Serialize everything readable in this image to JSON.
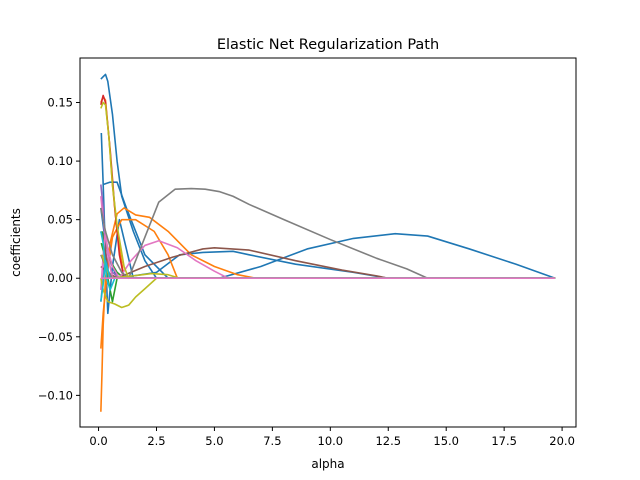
{
  "chart_data": {
    "type": "line",
    "title": "Elastic Net Regularization Path",
    "xlabel": "alpha",
    "ylabel": "coefficients",
    "xlim": [
      -0.8,
      20.6
    ],
    "ylim": [
      -0.127,
      0.188
    ],
    "xticks": [
      0.0,
      2.5,
      5.0,
      7.5,
      10.0,
      12.5,
      15.0,
      17.5,
      20.0
    ],
    "xtick_labels": [
      "0.0",
      "2.5",
      "5.0",
      "7.5",
      "10.0",
      "12.5",
      "15.0",
      "17.5",
      "20.0"
    ],
    "yticks": [
      -0.1,
      -0.05,
      0.0,
      0.05,
      0.1,
      0.15
    ],
    "ytick_labels": [
      "−0.10",
      "−0.05",
      "0.00",
      "0.05",
      "0.10",
      "0.15"
    ],
    "grid": false,
    "legend": "none",
    "series": [
      {
        "color": "#1f77b4",
        "points": [
          [
            0.1,
            0.17
          ],
          [
            0.2,
            0.172
          ],
          [
            0.3,
            0.174
          ],
          [
            0.4,
            0.168
          ],
          [
            0.6,
            0.14
          ],
          [
            0.8,
            0.1
          ],
          [
            1.0,
            0.07
          ],
          [
            1.5,
            0.04
          ],
          [
            2.0,
            0.015
          ],
          [
            2.5,
            0
          ],
          [
            19.7,
            0
          ]
        ]
      },
      {
        "color": "#1f77b4",
        "points": [
          [
            5.2,
            0
          ],
          [
            7,
            0.01
          ],
          [
            9,
            0.025
          ],
          [
            11,
            0.034
          ],
          [
            12.8,
            0.038
          ],
          [
            14.2,
            0.036
          ],
          [
            16,
            0.025
          ],
          [
            18,
            0.012
          ],
          [
            19.7,
            0
          ]
        ]
      },
      {
        "color": "#1f77b4",
        "points": [
          [
            0.12,
            0.124
          ],
          [
            0.2,
            0.08
          ],
          [
            0.3,
            0.02
          ],
          [
            0.4,
            -0.03
          ],
          [
            0.6,
            0.01
          ],
          [
            0.9,
            0.05
          ],
          [
            1.2,
            0.025
          ],
          [
            1.5,
            0
          ],
          [
            19.7,
            0
          ]
        ]
      },
      {
        "color": "#1f77b4",
        "points": [
          [
            0.2,
            0.08
          ],
          [
            0.5,
            0.082
          ],
          [
            0.8,
            0.082
          ],
          [
            1.2,
            0.06
          ],
          [
            2,
            0.02
          ],
          [
            3,
            0
          ],
          [
            19.7,
            0
          ]
        ]
      },
      {
        "color": "#1f77b4",
        "points": [
          [
            0.1,
            0.06
          ],
          [
            0.3,
            0.03
          ],
          [
            0.5,
            0.015
          ],
          [
            0.8,
            0
          ],
          [
            2.5,
            0.005
          ],
          [
            3.5,
            0.02
          ],
          [
            4.5,
            0.022
          ],
          [
            5.8,
            0.023
          ],
          [
            6.5,
            0.02
          ],
          [
            8.5,
            0.012
          ],
          [
            11,
            0.005
          ],
          [
            12.5,
            0
          ],
          [
            19.7,
            0
          ]
        ]
      },
      {
        "color": "#ff7f0e",
        "points": [
          [
            0.1,
            -0.114
          ],
          [
            0.15,
            -0.08
          ],
          [
            0.2,
            -0.04
          ],
          [
            0.3,
            0.0
          ],
          [
            0.5,
            0.03
          ],
          [
            0.8,
            0.055
          ],
          [
            1.1,
            0.06
          ],
          [
            1.6,
            0.054
          ],
          [
            2.2,
            0.052
          ],
          [
            3,
            0.04
          ],
          [
            4,
            0.02
          ],
          [
            5,
            0.01
          ],
          [
            6,
            0.003
          ],
          [
            6.8,
            0
          ],
          [
            19.7,
            0
          ]
        ]
      },
      {
        "color": "#ff7f0e",
        "points": [
          [
            0.1,
            -0.06
          ],
          [
            0.2,
            -0.03
          ],
          [
            0.35,
            0.0
          ],
          [
            0.6,
            0.035
          ],
          [
            1,
            0.05
          ],
          [
            1.6,
            0.05
          ],
          [
            2.4,
            0.04
          ],
          [
            3,
            0.02
          ],
          [
            3.4,
            0
          ],
          [
            19.7,
            0
          ]
        ]
      },
      {
        "color": "#ff7f0e",
        "points": [
          [
            0.1,
            0.15
          ],
          [
            0.2,
            0.155
          ],
          [
            0.3,
            0.152
          ],
          [
            0.45,
            0.12
          ],
          [
            0.6,
            0.08
          ],
          [
            0.8,
            0.04
          ],
          [
            1.1,
            0
          ],
          [
            19.7,
            0
          ]
        ]
      },
      {
        "color": "#2ca02c",
        "points": [
          [
            0.12,
            0.03
          ],
          [
            0.25,
            0.02
          ],
          [
            0.4,
            0.0
          ],
          [
            0.6,
            -0.02
          ],
          [
            0.8,
            0
          ],
          [
            19.7,
            0
          ]
        ]
      },
      {
        "color": "#2ca02c",
        "points": [
          [
            0.15,
            0.04
          ],
          [
            0.3,
            0.03
          ],
          [
            0.5,
            0.015
          ],
          [
            0.8,
            0.005
          ],
          [
            1.1,
            0
          ],
          [
            19.7,
            0
          ]
        ]
      },
      {
        "color": "#d62728",
        "points": [
          [
            0.1,
            0.148
          ],
          [
            0.2,
            0.156
          ],
          [
            0.3,
            0.15
          ],
          [
            0.5,
            0.11
          ],
          [
            0.7,
            0.06
          ],
          [
            0.9,
            0.02
          ],
          [
            1.1,
            0
          ],
          [
            19.7,
            0
          ]
        ]
      },
      {
        "color": "#9467bd",
        "points": [
          [
            0.1,
            0.08
          ],
          [
            0.2,
            0.06
          ],
          [
            0.3,
            0.02
          ],
          [
            0.45,
            0.0
          ],
          [
            0.6,
            0.005
          ],
          [
            0.9,
            0
          ],
          [
            19.7,
            0
          ]
        ]
      },
      {
        "color": "#9467bd",
        "points": [
          [
            0.1,
            -0.02
          ],
          [
            0.2,
            0.0
          ],
          [
            0.3,
            0.025
          ],
          [
            0.45,
            0.0
          ],
          [
            0.7,
            0
          ],
          [
            19.7,
            0
          ]
        ]
      },
      {
        "color": "#8c564b",
        "points": [
          [
            0.1,
            0.01
          ],
          [
            0.4,
            0.005
          ],
          [
            0.8,
            0
          ],
          [
            2,
            0.01
          ],
          [
            3.2,
            0.018
          ],
          [
            4.5,
            0.025
          ],
          [
            5,
            0.026
          ],
          [
            6.5,
            0.024
          ],
          [
            8.5,
            0.015
          ],
          [
            10.5,
            0.007
          ],
          [
            12,
            0.002
          ],
          [
            12.5,
            0
          ],
          [
            19.7,
            0
          ]
        ]
      },
      {
        "color": "#8c564b",
        "points": [
          [
            0.1,
            0.04
          ],
          [
            0.25,
            0.03
          ],
          [
            0.4,
            0.005
          ],
          [
            0.6,
            0
          ],
          [
            19.7,
            0
          ]
        ]
      },
      {
        "color": "#e377c2",
        "points": [
          [
            0.1,
            0.07
          ],
          [
            0.2,
            0.05
          ],
          [
            0.4,
            0.025
          ],
          [
            0.6,
            0.01
          ],
          [
            0.9,
            0.0
          ],
          [
            1.4,
            0.015
          ],
          [
            2.0,
            0.028
          ],
          [
            2.6,
            0.032
          ],
          [
            3.4,
            0.026
          ],
          [
            4.2,
            0.015
          ],
          [
            5,
            0.006
          ],
          [
            5.6,
            0
          ],
          [
            19.7,
            0
          ]
        ]
      },
      {
        "color": "#e377c2",
        "points": [
          [
            0.1,
            -0.01
          ],
          [
            0.2,
            0.02
          ],
          [
            0.3,
            0.04
          ],
          [
            0.4,
            0.02
          ],
          [
            0.6,
            0
          ],
          [
            19.7,
            0
          ]
        ]
      },
      {
        "color": "#7f7f7f",
        "points": [
          [
            0.1,
            0.06
          ],
          [
            0.3,
            0.04
          ],
          [
            0.6,
            0.02
          ],
          [
            1.0,
            0.005
          ],
          [
            1.3,
            0
          ],
          [
            2,
            0.035
          ],
          [
            2.6,
            0.065
          ],
          [
            3.3,
            0.076
          ],
          [
            4,
            0.0765
          ],
          [
            4.6,
            0.076
          ],
          [
            5.2,
            0.074
          ],
          [
            5.8,
            0.07
          ],
          [
            6.5,
            0.063
          ],
          [
            8,
            0.05
          ],
          [
            10,
            0.033
          ],
          [
            12,
            0.017
          ],
          [
            13.3,
            0.008
          ],
          [
            14.2,
            0
          ],
          [
            19.7,
            0
          ]
        ]
      },
      {
        "color": "#7f7f7f",
        "points": [
          [
            0.1,
            0.02
          ],
          [
            0.3,
            0.01
          ],
          [
            0.6,
            0
          ],
          [
            19.7,
            0
          ]
        ]
      },
      {
        "color": "#bcbd22",
        "points": [
          [
            0.1,
            0.145
          ],
          [
            0.2,
            0.15
          ],
          [
            0.3,
            0.148
          ],
          [
            0.45,
            0.12
          ],
          [
            0.6,
            0.08
          ],
          [
            0.8,
            0.045
          ],
          [
            1.1,
            0.01
          ],
          [
            1.3,
            0
          ],
          [
            19.7,
            0
          ]
        ]
      },
      {
        "color": "#bcbd22",
        "points": [
          [
            0.1,
            0.0
          ],
          [
            0.2,
            -0.01
          ],
          [
            0.4,
            -0.02
          ],
          [
            0.7,
            -0.022
          ],
          [
            1.0,
            -0.025
          ],
          [
            1.3,
            -0.023
          ],
          [
            1.6,
            -0.016
          ],
          [
            2.0,
            -0.009
          ],
          [
            2.5,
            0
          ],
          [
            19.7,
            0
          ]
        ]
      },
      {
        "color": "#bcbd22",
        "points": [
          [
            0.15,
            0.02
          ],
          [
            0.3,
            0.01
          ],
          [
            0.5,
            0
          ],
          [
            1.5,
            0.002
          ],
          [
            2.3,
            0.004
          ],
          [
            3.0,
            0.003
          ],
          [
            3.5,
            0
          ],
          [
            19.7,
            0
          ]
        ]
      },
      {
        "color": "#17becf",
        "points": [
          [
            0.1,
            0.04
          ],
          [
            0.2,
            0.03
          ],
          [
            0.35,
            0.0
          ],
          [
            0.5,
            -0.01
          ],
          [
            0.7,
            0
          ],
          [
            19.7,
            0
          ]
        ]
      },
      {
        "color": "#17becf",
        "points": [
          [
            0.1,
            -0.02
          ],
          [
            0.2,
            -0.005
          ],
          [
            0.3,
            0.015
          ],
          [
            0.5,
            0.0
          ],
          [
            0.8,
            0
          ],
          [
            19.7,
            0
          ]
        ]
      },
      {
        "color": "#e377c2",
        "points": [
          [
            0.1,
            0.0
          ],
          [
            19.7,
            0.0
          ]
        ]
      }
    ]
  }
}
